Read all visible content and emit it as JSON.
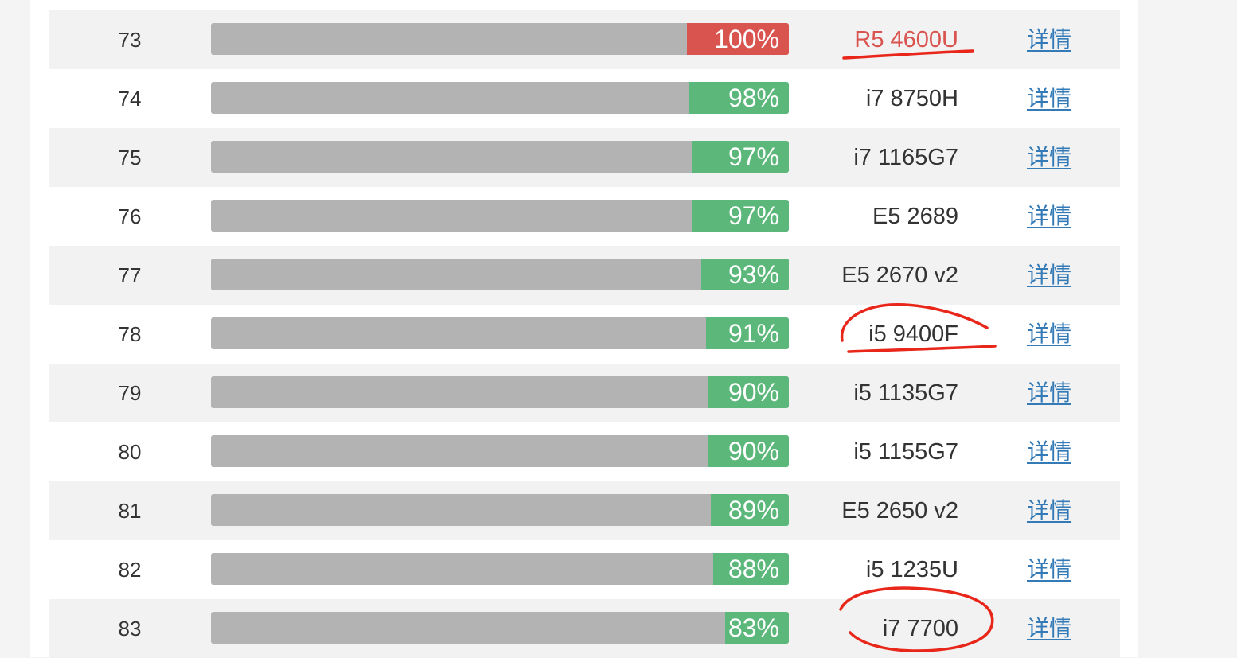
{
  "colors": {
    "highlight": "#d9534f",
    "normal": "#5cb87a",
    "bar_track": "#b3b3b3",
    "link": "#337ab7",
    "annotation": "#e8261a"
  },
  "rows": [
    {
      "rank": "73",
      "percent": "100%",
      "value": 100,
      "cpu": "R5 4600U",
      "detail": "详情",
      "highlight": true
    },
    {
      "rank": "74",
      "percent": "98%",
      "value": 98,
      "cpu": "i7 8750H",
      "detail": "详情",
      "highlight": false
    },
    {
      "rank": "75",
      "percent": "97%",
      "value": 97,
      "cpu": "i7 1165G7",
      "detail": "详情",
      "highlight": false
    },
    {
      "rank": "76",
      "percent": "97%",
      "value": 97,
      "cpu": "E5 2689",
      "detail": "详情",
      "highlight": false
    },
    {
      "rank": "77",
      "percent": "93%",
      "value": 93,
      "cpu": "E5 2670 v2",
      "detail": "详情",
      "highlight": false
    },
    {
      "rank": "78",
      "percent": "91%",
      "value": 91,
      "cpu": "i5 9400F",
      "detail": "详情",
      "highlight": false
    },
    {
      "rank": "79",
      "percent": "90%",
      "value": 90,
      "cpu": "i5 1135G7",
      "detail": "详情",
      "highlight": false
    },
    {
      "rank": "80",
      "percent": "90%",
      "value": 90,
      "cpu": "i5 1155G7",
      "detail": "详情",
      "highlight": false
    },
    {
      "rank": "81",
      "percent": "89%",
      "value": 89,
      "cpu": "E5 2650 v2",
      "detail": "详情",
      "highlight": false
    },
    {
      "rank": "82",
      "percent": "88%",
      "value": 88,
      "cpu": "i5 1235U",
      "detail": "详情",
      "highlight": false
    },
    {
      "rank": "83",
      "percent": "83%",
      "value": 83,
      "cpu": "i7 7700",
      "detail": "详情",
      "highlight": false
    }
  ]
}
